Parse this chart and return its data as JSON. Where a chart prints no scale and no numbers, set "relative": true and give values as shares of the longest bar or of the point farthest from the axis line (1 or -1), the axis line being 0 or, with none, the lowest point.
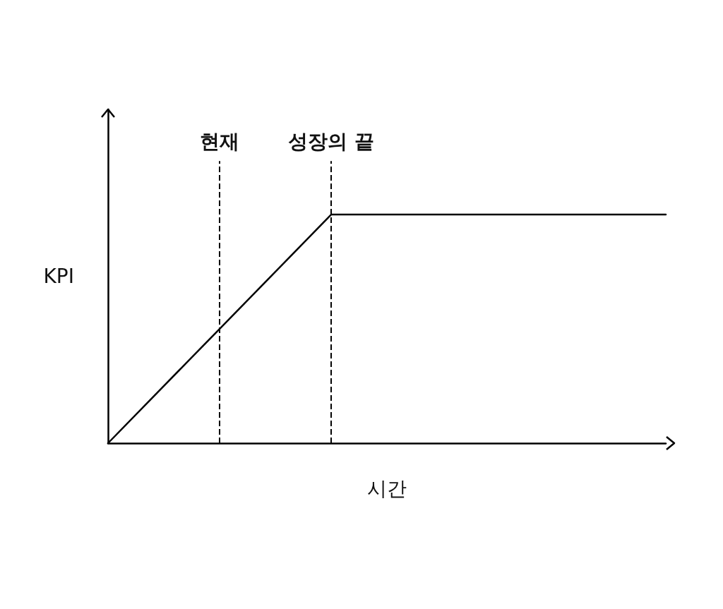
{
  "chart_data": {
    "type": "line",
    "relative": true,
    "xlabel": "시간",
    "ylabel": "KPI",
    "categories": [
      null,
      null,
      null,
      null,
      null,
      null
    ],
    "series": [
      {
        "color": "#000000",
        "values": [
          0,
          0.5,
          1,
          1,
          1,
          1
        ]
      }
    ],
    "annotations": [
      "현재",
      "성장의 끝"
    ],
    "marker": "none",
    "line_style": "solid",
    "grid": false
  }
}
